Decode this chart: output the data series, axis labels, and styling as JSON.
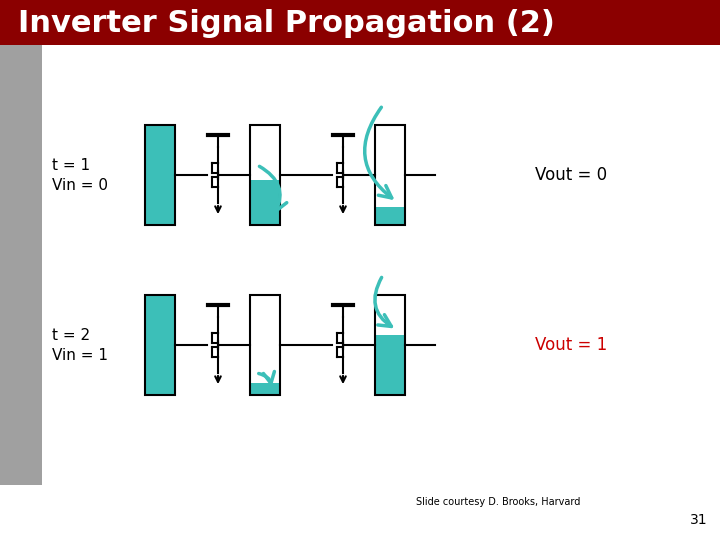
{
  "title": "Inverter Signal Propagation (2)",
  "title_bg": "#8B0000",
  "title_fg": "#FFFFFF",
  "slide_credit": "Slide courtesy D. Brooks, Harvard",
  "page_number": "31",
  "teal": "#3CBFB8",
  "black": "#000000",
  "white": "#FFFFFF",
  "red": "#CC0000",
  "gray_bar": "#A0A0A0",
  "bg_color": "#FFFFFF",
  "row1_label1": "t = 1",
  "row1_label2": "Vin = 0",
  "row2_label1": "t = 2",
  "row2_label2": "Vin = 1",
  "row1_vout": "Vout = 0",
  "row2_vout": "Vout = 1",
  "row1_vout_color": "#000000",
  "row2_vout_color": "#CC0000"
}
